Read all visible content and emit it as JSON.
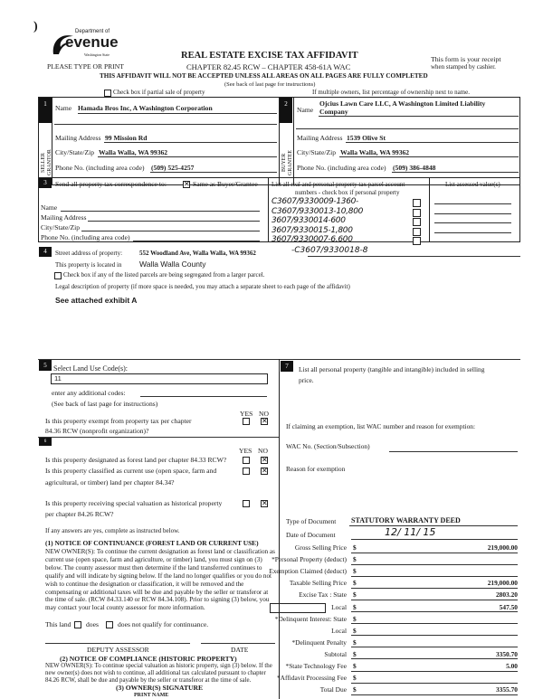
{
  "header": {
    "logo_dept": "Department of",
    "logo_name": "evenue",
    "logo_state": "Washington State",
    "please": "PLEASE TYPE OR PRINT",
    "title": "REAL ESTATE EXCISE TAX AFFIDAVIT",
    "chapter": "CHAPTER 82.45 RCW – CHAPTER 458-61A WAC",
    "warning": "THIS AFFIDAVIT WILL NOT BE ACCEPTED UNLESS ALL AREAS ON ALL PAGES ARE FULLY COMPLETED",
    "see_back": "(See back of last page for instructions)",
    "receipt1": "This form is your receipt",
    "receipt2": "when stamped by cashier.",
    "partial_sale": "Check box if partial sale of property",
    "multiple_owners": "If multiple owners, list percentage of ownership next to name."
  },
  "seller": {
    "num": "1",
    "side": "SELLER GRANTOR",
    "name_label": "Name",
    "name": "Hamada Bros Inc, A Washington Corporation",
    "addr_label": "Mailing Address",
    "addr": "99 Mission Rd",
    "city_label": "City/State/Zip",
    "city": "Walla Walla, WA  99362",
    "phone_label": "Phone No. (including area code)",
    "phone": "(509) 525-4257"
  },
  "buyer": {
    "num": "2",
    "side": "BUYER GRANTEE",
    "name_label": "Name",
    "name1": "Ojcius Lawn Care LLC, A Washington Limited Liability",
    "name2": "Company",
    "addr_label": "Mailing Address",
    "addr": "1539 Olive St",
    "city_label": "City/State/Zip",
    "city": "Walla Walla, WA  99362",
    "phone_label": "Phone No. (including area code)",
    "phone": "(509) 386-4848"
  },
  "sec3": {
    "num": "3",
    "send": "Send all property tax correspondence to:",
    "same_as": "Same as Buyer/Grantee",
    "same_checked": true,
    "name": "Name",
    "addr": "Mailing Address",
    "city": "City/State/Zip",
    "phone": "Phone No. (including area code)",
    "parcel_head1": "List all real and personal property tax parcel account",
    "parcel_head2": "numbers - check box if personal property",
    "assessed_head": "List assessed value(s)",
    "parcels": [
      "C3607/9330009-1360-",
      "C3607/9330013-10,800",
      "3607/9330014-600",
      "3607/9330015-1,800",
      "3607/9330007-6,600"
    ]
  },
  "sec4": {
    "num": "4",
    "street_label": "Street address of property:",
    "street": "552 Woodland Ave, Walla Walla, WA  99362",
    "extra_parcel": "-C3607/9330018-8",
    "located_label": "This property is located in",
    "county": "Walla Walla County",
    "segregated": "Check box if any of the listed parcels are being segregated from a larger parcel.",
    "legal_label": "Legal description of property (if more space is needed, you may attach a separate sheet to each page of the affidavit)",
    "legal": "See attached exhibit A"
  },
  "sec5": {
    "num": "5",
    "label": "Select Land Use Code(s):",
    "code": "11",
    "additional": "enter any additional codes:",
    "see_back": "(See back of last page for instructions)",
    "yes": "YES",
    "no": "NO",
    "q1a": "Is this property exempt from property tax per chapter",
    "q1b": "84.36 RCW (nonprofit organization)?"
  },
  "sec6": {
    "num": "6",
    "yes": "YES",
    "no": "NO",
    "q1": "Is this property designated as forest land per chapter 84.33 RCW?",
    "q2a": "Is this property classified as current use (open space, farm and",
    "q2b": "agricultural, or timber) land per chapter 84.34?",
    "q3a": "Is this property receiving special valuation as historical property",
    "q3b": "per chapter 84.26 RCW?",
    "if_yes": "If any answers are yes, complete as instructed below.",
    "notice1_title": "(1) NOTICE OF CONTINUANCE (FOREST LAND OR CURRENT USE)",
    "notice1_body": "NEW OWNER(S): To continue the current designation as forest land or classification as current use (open space, farm and agriculture, or timber) land, you must sign on (3) below. The county assessor must then determine if the land transferred continues to qualify and will indicate by signing below. If the land no longer qualifies or you do not wish to continue the designation or classification, it will be removed and the compensating or additional taxes will be due and payable by the seller or transferor at the time of sale. (RCW 84.33.140 or RCW 84.34.108). Prior to signing (3) below, you may contact your local county assessor for more information.",
    "this_land": "This land",
    "does": "does",
    "does_not": "does not  qualify for continuance.",
    "deputy": "DEPUTY ASSESSOR",
    "date": "DATE",
    "notice2_title": "(2) NOTICE OF COMPLIANCE (HISTORIC PROPERTY)",
    "notice2_body": "NEW OWNER(S): To continue special valuation as historic property, sign (3) below. If the new owner(s) does not wish to continue, all additional tax calculated pursuant to chapter 84.26 RCW, shall be due and payable by the seller or transferor at the time of sale.",
    "owner_sig": "(3) OWNER(S) SIGNATURE",
    "print_name": "PRINT NAME"
  },
  "sec7": {
    "num": "7",
    "label1": "List all personal property (tangible and intangible) included in selling",
    "label2": "price.",
    "exemption": "If claiming an exemption, list WAC number and reason for exemption:",
    "wac": "WAC No. (Section/Subsection)",
    "reason": "Reason for exemption",
    "doc_type_label": "Type of Document",
    "doc_type": "STATUTORY WARRANTY DEED",
    "doc_date_label": "Date of Document",
    "doc_date": "12/ 11/ 15",
    "fees": [
      {
        "label": "Gross Selling Price",
        "value": "219,000.00"
      },
      {
        "label": "*Personal Property (deduct)",
        "value": ""
      },
      {
        "label": "Exemption Claimed (deduct)",
        "value": ""
      },
      {
        "label": "Taxable Selling Price",
        "value": "219,000.00"
      },
      {
        "label": "Excise Tax : State",
        "value": "2803.20"
      },
      {
        "label": "Local",
        "value": "547.50"
      },
      {
        "label": "*Delinquent Interest:  State",
        "value": ""
      },
      {
        "label": "Local",
        "value": ""
      },
      {
        "label": "*Delinquent Penalty",
        "value": ""
      },
      {
        "label": "Subtotal",
        "value": "3350.70"
      },
      {
        "label": "*State Technology Fee",
        "value": "5.00"
      },
      {
        "label": "*Affidavit Processing Fee",
        "value": ""
      },
      {
        "label": "Total Due",
        "value": "3355.70"
      }
    ],
    "dollar": "$"
  }
}
